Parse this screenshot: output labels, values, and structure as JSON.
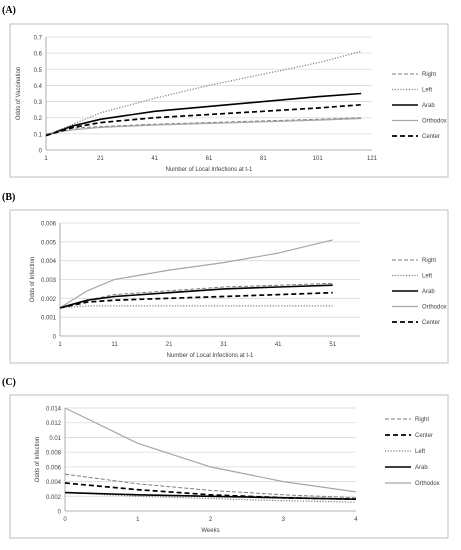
{
  "chart_data": [
    {
      "type": "line",
      "panel_label": "(A)",
      "xlabel": "Number of Local Infections at t-1",
      "ylabel": "Odds of Vaccination",
      "xlim": [
        1,
        121
      ],
      "ylim": [
        0,
        0.7
      ],
      "xticks": [
        1,
        21,
        41,
        61,
        81,
        101,
        121
      ],
      "yticks": [
        "0",
        "0.1",
        "0.2",
        "0.3",
        "0.4",
        "0.5",
        "0.6",
        "0.7"
      ],
      "grid": true,
      "legend_position": "right",
      "series": [
        {
          "name": "Right",
          "style": "dash-thin",
          "color": "#7f7f7f",
          "x": [
            1,
            11,
            21,
            41,
            61,
            81,
            101,
            117
          ],
          "y": [
            0.09,
            0.135,
            0.145,
            0.16,
            0.17,
            0.18,
            0.19,
            0.2
          ]
        },
        {
          "name": "Left",
          "style": "dotted",
          "color": "#7f7f7f",
          "x": [
            1,
            11,
            21,
            41,
            61,
            81,
            101,
            117
          ],
          "y": [
            0.09,
            0.16,
            0.23,
            0.32,
            0.4,
            0.47,
            0.54,
            0.61
          ]
        },
        {
          "name": "Arab",
          "style": "solid-thick",
          "color": "#000000",
          "x": [
            1,
            11,
            21,
            41,
            61,
            81,
            101,
            117
          ],
          "y": [
            0.09,
            0.15,
            0.19,
            0.24,
            0.27,
            0.3,
            0.33,
            0.35
          ]
        },
        {
          "name": "Orthodox",
          "style": "solid-thin",
          "color": "#a6a6a6",
          "x": [
            1,
            11,
            21,
            41,
            61,
            81,
            101,
            117
          ],
          "y": [
            0.1,
            0.125,
            0.14,
            0.155,
            0.165,
            0.175,
            0.185,
            0.195
          ]
        },
        {
          "name": "Center",
          "style": "dash-thick",
          "color": "#000000",
          "x": [
            1,
            11,
            21,
            41,
            61,
            81,
            101,
            117
          ],
          "y": [
            0.09,
            0.14,
            0.17,
            0.2,
            0.22,
            0.24,
            0.26,
            0.28
          ]
        }
      ]
    },
    {
      "type": "line",
      "panel_label": "(B)",
      "xlabel": "Number of Local Infections at t-1",
      "ylabel": "Odds of Infection",
      "xlim": [
        1,
        56
      ],
      "ylim": [
        0,
        0.006
      ],
      "xticks": [
        1,
        11,
        21,
        31,
        41,
        51
      ],
      "yticks": [
        "0",
        "0.001",
        "0.002",
        "0.003",
        "0.004",
        "0.005",
        "0.006"
      ],
      "grid": true,
      "legend_position": "right",
      "series": [
        {
          "name": "Right",
          "style": "dash-thin",
          "color": "#7f7f7f",
          "x": [
            1,
            6,
            11,
            21,
            31,
            41,
            51
          ],
          "y": [
            0.0015,
            0.0019,
            0.0022,
            0.0024,
            0.0026,
            0.0027,
            0.0028
          ]
        },
        {
          "name": "Left",
          "style": "dotted",
          "color": "#7f7f7f",
          "x": [
            1,
            6,
            11,
            21,
            31,
            41,
            51
          ],
          "y": [
            0.0015,
            0.0016,
            0.0016,
            0.0016,
            0.0016,
            0.0016,
            0.0016
          ]
        },
        {
          "name": "Arab",
          "style": "solid-thick",
          "color": "#000000",
          "x": [
            1,
            6,
            11,
            21,
            31,
            41,
            51
          ],
          "y": [
            0.0015,
            0.0019,
            0.0021,
            0.0023,
            0.0025,
            0.0026,
            0.0027
          ]
        },
        {
          "name": "Orthodox",
          "style": "solid-thin",
          "color": "#a6a6a6",
          "x": [
            1,
            6,
            11,
            21,
            31,
            41,
            51
          ],
          "y": [
            0.0015,
            0.0024,
            0.003,
            0.0035,
            0.0039,
            0.0044,
            0.0051
          ]
        },
        {
          "name": "Center",
          "style": "dash-thick",
          "color": "#000000",
          "x": [
            1,
            6,
            11,
            21,
            31,
            41,
            51
          ],
          "y": [
            0.0015,
            0.0018,
            0.0019,
            0.002,
            0.0021,
            0.0022,
            0.0023
          ]
        }
      ]
    },
    {
      "type": "line",
      "panel_label": "(C)",
      "xlabel": "Weeks",
      "ylabel": "Odds of Infection",
      "xlim": [
        0,
        4
      ],
      "ylim": [
        0,
        0.014
      ],
      "xticks": [
        0,
        1,
        2,
        3,
        4
      ],
      "yticks": [
        "0",
        "0.002",
        "0.004",
        "0.006",
        "0.008",
        "0.01",
        "0.012",
        "0.014"
      ],
      "grid": true,
      "legend_position": "right",
      "series": [
        {
          "name": "Right",
          "style": "dash-thin",
          "color": "#7f7f7f",
          "x": [
            0,
            1,
            2,
            3,
            4
          ],
          "y": [
            0.005,
            0.0037,
            0.0028,
            0.0022,
            0.0018
          ]
        },
        {
          "name": "Center",
          "style": "dash-thick",
          "color": "#000000",
          "x": [
            0,
            1,
            2,
            3,
            4
          ],
          "y": [
            0.0038,
            0.0029,
            0.0022,
            0.0018,
            0.0016
          ]
        },
        {
          "name": "Left",
          "style": "dotted",
          "color": "#7f7f7f",
          "x": [
            0,
            1,
            2,
            3,
            4
          ],
          "y": [
            0.0025,
            0.002,
            0.0017,
            0.0014,
            0.0012
          ]
        },
        {
          "name": "Arab",
          "style": "solid-thick",
          "color": "#000000",
          "x": [
            0,
            1,
            2,
            3,
            4
          ],
          "y": [
            0.0025,
            0.0022,
            0.002,
            0.0018,
            0.0016
          ]
        },
        {
          "name": "Orthodox",
          "style": "solid-thin",
          "color": "#a6a6a6",
          "x": [
            0,
            1,
            2,
            3,
            4
          ],
          "y": [
            0.014,
            0.0092,
            0.006,
            0.004,
            0.0026
          ]
        }
      ]
    }
  ]
}
